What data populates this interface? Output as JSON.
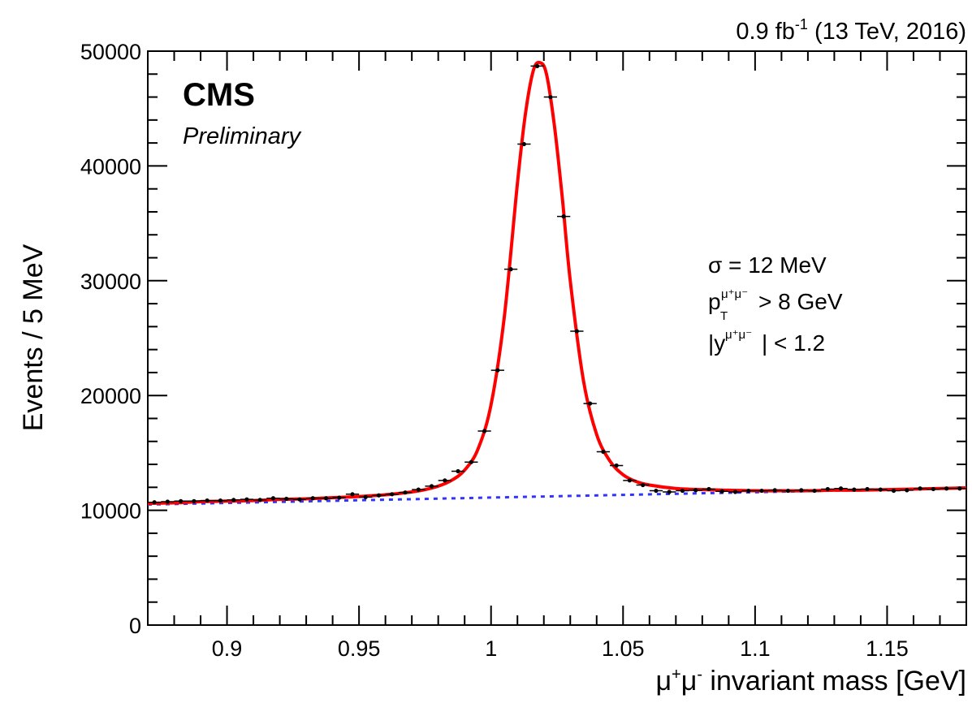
{
  "chart_data": {
    "type": "scatter",
    "title": "",
    "lumi_label": "0.9 fb",
    "lumi_sup": "-1",
    "lumi_tail": " (13 TeV, 2016)",
    "experiment": "CMS",
    "status": "Preliminary",
    "xlabel_sym": "μ",
    "xlabel_sup1": "+",
    "xlabel_sup2": "-",
    "xlabel_rest": " invariant mass [GeV]",
    "ylabel": "Events / 5 MeV",
    "xlim": [
      0.87,
      1.18
    ],
    "ylim": [
      0,
      50000
    ],
    "x_ticks": [
      0.9,
      0.95,
      1.0,
      1.05,
      1.1,
      1.15
    ],
    "x_tick_labels": [
      "0.9",
      "0.95",
      "1",
      "1.05",
      "1.1",
      "1.15"
    ],
    "y_ticks": [
      0,
      10000,
      20000,
      30000,
      40000,
      50000
    ],
    "y_tick_labels": [
      "0",
      "10000",
      "20000",
      "30000",
      "40000",
      "50000"
    ],
    "annotations": {
      "sigma_sym": "σ",
      "sigma_rest": " = 12 MeV",
      "pt_base": "p",
      "pt_sub": "T",
      "pt_sup": "μ⁺μ⁻",
      "pt_rest": " > 8 GeV",
      "y_pre": "|y",
      "y_sup": "μ⁺μ⁻",
      "y_rest": "| < 1.2"
    },
    "series": [
      {
        "name": "",
        "kind": "data",
        "color": "#000000",
        "x": [
          0.8725,
          0.8775,
          0.8825,
          0.8875,
          0.8925,
          0.8975,
          0.9025,
          0.9075,
          0.9125,
          0.9175,
          0.9225,
          0.9275,
          0.9325,
          0.9375,
          0.9425,
          0.9475,
          0.9525,
          0.9575,
          0.9625,
          0.9675,
          0.9725,
          0.9775,
          0.9825,
          0.9875,
          0.9925,
          0.9975,
          1.0025,
          1.0075,
          1.0125,
          1.0175,
          1.0225,
          1.0275,
          1.0325,
          1.0375,
          1.0425,
          1.0475,
          1.0525,
          1.0575,
          1.0625,
          1.0675,
          1.0725,
          1.0775,
          1.0825,
          1.0875,
          1.0925,
          1.0975,
          1.1025,
          1.1075,
          1.1125,
          1.1175,
          1.1225,
          1.1275,
          1.1325,
          1.1375,
          1.1425,
          1.1475,
          1.1525,
          1.1575,
          1.1625,
          1.1675,
          1.1725,
          1.1775
        ],
        "y": [
          10700,
          10750,
          10800,
          10800,
          10850,
          10850,
          10900,
          10950,
          10900,
          11050,
          11000,
          10950,
          11050,
          11050,
          11100,
          11400,
          11150,
          11300,
          11400,
          11550,
          11800,
          12100,
          12600,
          13400,
          14200,
          16900,
          22200,
          31000,
          41900,
          48700,
          46000,
          35600,
          25600,
          19300,
          15100,
          13900,
          12600,
          12200,
          11700,
          11600,
          11700,
          11750,
          11850,
          11650,
          11600,
          11700,
          11700,
          11750,
          11700,
          11750,
          11700,
          11850,
          11900,
          11800,
          11850,
          11800,
          11700,
          11750,
          11900,
          11850,
          11900,
          11900
        ]
      },
      {
        "name": "",
        "kind": "fit",
        "color": "#ff0000",
        "x": [
          0.87,
          0.88,
          0.89,
          0.9,
          0.91,
          0.92,
          0.93,
          0.94,
          0.95,
          0.96,
          0.97,
          0.975,
          0.98,
          0.985,
          0.99,
          0.995,
          1.0,
          1.005,
          1.01,
          1.013,
          1.016,
          1.0185,
          1.021,
          1.024,
          1.027,
          1.03,
          1.035,
          1.04,
          1.045,
          1.05,
          1.055,
          1.06,
          1.07,
          1.08,
          1.09,
          1.1,
          1.11,
          1.12,
          1.13,
          1.14,
          1.15,
          1.16,
          1.17,
          1.18
        ],
        "y": [
          10600,
          10650,
          10750,
          10800,
          10850,
          10950,
          11000,
          11100,
          11200,
          11350,
          11600,
          11800,
          12100,
          12600,
          13500,
          15300,
          19200,
          26800,
          38500,
          44500,
          48300,
          49000,
          48000,
          43500,
          37200,
          30000,
          21300,
          16600,
          14300,
          13100,
          12500,
          12200,
          11900,
          11800,
          11750,
          11700,
          11700,
          11700,
          11750,
          11750,
          11800,
          11850,
          11900,
          11950
        ]
      },
      {
        "name": "",
        "kind": "background",
        "color": "#3333ff",
        "x": [
          0.87,
          1.18
        ],
        "y": [
          10500,
          11950
        ]
      }
    ]
  }
}
